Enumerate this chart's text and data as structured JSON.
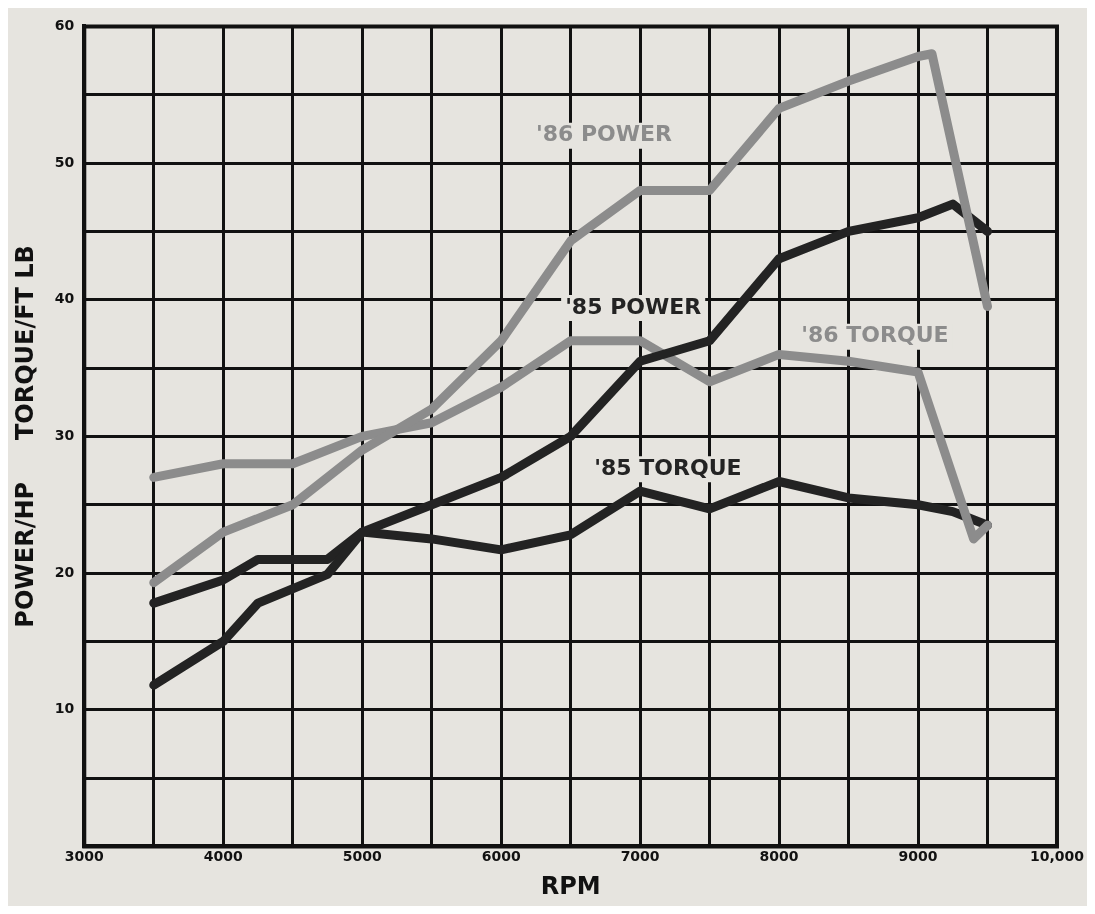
{
  "chart_data": {
    "type": "line",
    "xlabel": "RPM",
    "ylabel": "POWER/HP     TORQUE/FT LB",
    "xlim": [
      3000,
      10000
    ],
    "ylim": [
      0,
      60
    ],
    "xticks": [
      3000,
      {
        "value": 3500,
        "label": null
      },
      4000,
      {
        "value": 4500,
        "label": null
      },
      5000,
      {
        "value": 5500,
        "label": null
      },
      6000,
      {
        "value": 6500,
        "label": null
      },
      7000,
      {
        "value": 7500,
        "label": null
      },
      8000,
      {
        "value": 8500,
        "label": null
      },
      9000,
      {
        "value": 9500,
        "label": null
      },
      {
        "value": 10000,
        "label": "10,000"
      }
    ],
    "yticks": [
      {
        "value": 0,
        "label": null
      },
      {
        "value": 5,
        "label": null
      },
      10,
      {
        "value": 15,
        "label": null
      },
      20,
      {
        "value": 25,
        "label": null
      },
      30,
      {
        "value": 35,
        "label": null
      },
      40,
      {
        "value": 45,
        "label": null
      },
      50,
      {
        "value": 55,
        "label": null
      },
      60
    ],
    "grid": true,
    "legend": false,
    "marker": "none",
    "line_style": "solid",
    "series": [
      {
        "name": "'86 POWER",
        "color": "#8c8c8c",
        "x": [
          3500,
          4000,
          4500,
          5000,
          5500,
          6000,
          6500,
          7000,
          7500,
          8000,
          8500,
          9000,
          9100,
          9500
        ],
        "values": [
          19.3,
          23,
          25,
          29,
          32,
          37,
          44.3,
          48,
          48,
          54,
          56,
          57.8,
          58,
          39.5
        ]
      },
      {
        "name": "'85 POWER",
        "color": "#232323",
        "x": [
          3500,
          4000,
          4250,
          4750,
          5000,
          5500,
          6000,
          6250,
          6500,
          7000,
          7500,
          8000,
          8500,
          9000,
          9250,
          9500
        ],
        "values": [
          11.8,
          15,
          17.8,
          19.9,
          23,
          25,
          27,
          28.5,
          30,
          35.5,
          37,
          43,
          45,
          46,
          47,
          45
        ]
      },
      {
        "name": "'86 TORQUE",
        "color": "#8c8c8c",
        "x": [
          3500,
          4000,
          4500,
          5000,
          5500,
          6000,
          6500,
          7000,
          7500,
          8000,
          8500,
          9000,
          9400,
          9500
        ],
        "values": [
          27,
          28,
          28,
          30,
          31,
          33.6,
          37,
          37,
          34,
          36,
          35.5,
          34.7,
          22.5,
          23.5
        ]
      },
      {
        "name": "'85 TORQUE",
        "color": "#232323",
        "x": [
          3500,
          4000,
          4250,
          4750,
          5000,
          5500,
          6000,
          6500,
          7000,
          7500,
          8000,
          8500,
          9000,
          9250,
          9500
        ],
        "values": [
          17.8,
          19.5,
          21,
          21,
          23,
          22.5,
          21.7,
          22.8,
          26,
          24.7,
          26.7,
          25.5,
          25,
          24.5,
          23.5
        ]
      }
    ]
  }
}
